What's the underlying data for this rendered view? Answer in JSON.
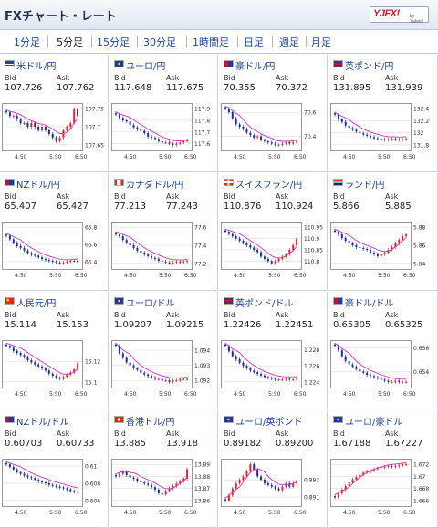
{
  "header": {
    "title": "FXチャート・レート",
    "logo_text": "YJFX!",
    "logo_sub": "by Yahoo!"
  },
  "tabs": [
    {
      "label": "1分足",
      "active": false
    },
    {
      "label": "5分足",
      "active": true
    },
    {
      "label": "15分足",
      "active": false
    },
    {
      "label": "30分足",
      "active": false
    },
    {
      "label": "1時間足",
      "active": false
    },
    {
      "label": "日足",
      "active": false
    },
    {
      "label": "週足",
      "active": false
    },
    {
      "label": "月足",
      "active": false
    }
  ],
  "labels": {
    "bid": "Bid",
    "ask": "Ask"
  },
  "colors": {
    "up": "#e0242b",
    "down": "#1c2f9c",
    "ma": "#cc33cc",
    "grid": "#dddddd"
  },
  "pairs": [
    {
      "name": "米ドル/円",
      "flag": "us-flag-icon",
      "bid": "107.726",
      "ask": "107.762",
      "chart_data": {
        "type": "candlestick",
        "x_ticks": [
          "4:50",
          "5:50",
          "6:50"
        ],
        "y_ticks": [
          "107.75",
          "107.7",
          "107.65"
        ],
        "close": [
          107.74,
          107.73,
          107.73,
          107.72,
          107.71,
          107.71,
          107.7,
          107.71,
          107.7,
          107.69,
          107.7,
          107.69,
          107.68,
          107.67,
          107.66,
          107.67,
          107.69,
          107.7,
          107.71,
          107.75,
          107.73
        ]
      }
    },
    {
      "name": "ユーロ/円",
      "flag": "eu-flag-icon",
      "bid": "117.648",
      "ask": "117.675",
      "chart_data": {
        "type": "candlestick",
        "x_ticks": [
          "4:50",
          "5:50",
          "6:50"
        ],
        "y_ticks": [
          "117.9",
          "117.8",
          "117.7",
          "117.6"
        ],
        "close": [
          117.85,
          117.82,
          117.8,
          117.79,
          117.76,
          117.74,
          117.72,
          117.71,
          117.69,
          117.66,
          117.65,
          117.64,
          117.62,
          117.61,
          117.61,
          117.6,
          117.59,
          117.6,
          117.61,
          117.62,
          117.63
        ]
      }
    },
    {
      "name": "豪ドル/円",
      "flag": "au-flag-icon",
      "bid": "70.355",
      "ask": "70.372",
      "chart_data": {
        "type": "candlestick",
        "x_ticks": [
          "4:50",
          "5:50",
          "6:50"
        ],
        "y_ticks": [
          "70.6",
          "70.4"
        ],
        "close": [
          70.63,
          70.6,
          70.55,
          70.5,
          70.48,
          70.46,
          70.43,
          70.41,
          70.39,
          70.4,
          70.37,
          70.36,
          70.35,
          70.34,
          70.33,
          70.33,
          70.34,
          70.35,
          70.34,
          70.35,
          70.36
        ]
      }
    },
    {
      "name": "英ポンド/円",
      "flag": "gb-flag-icon",
      "bid": "131.895",
      "ask": "131.939",
      "chart_data": {
        "type": "candlestick",
        "x_ticks": [
          "4:50",
          "5:50",
          "6:50"
        ],
        "y_ticks": [
          "132.4",
          "132.2",
          "132",
          "131.8"
        ],
        "close": [
          132.3,
          132.22,
          132.18,
          132.12,
          132.08,
          132.05,
          132.02,
          131.99,
          131.97,
          131.95,
          131.93,
          131.91,
          131.9,
          131.89,
          131.88,
          131.89,
          131.9,
          131.89,
          131.88,
          131.89,
          131.9
        ]
      }
    },
    {
      "name": "NZドル/円",
      "flag": "nz-flag-icon",
      "bid": "65.407",
      "ask": "65.427",
      "chart_data": {
        "type": "candlestick",
        "x_ticks": [
          "4:50",
          "5:50",
          "6:50"
        ],
        "y_ticks": [
          "65.8",
          "65.6",
          "65.4"
        ],
        "close": [
          65.7,
          65.66,
          65.62,
          65.58,
          65.56,
          65.53,
          65.5,
          65.48,
          65.47,
          65.45,
          65.43,
          65.42,
          65.41,
          65.4,
          65.39,
          65.38,
          65.39,
          65.4,
          65.41,
          65.41,
          65.4
        ]
      }
    },
    {
      "name": "カナダドル/円",
      "flag": "ca-flag-icon",
      "bid": "77.213",
      "ask": "77.243",
      "chart_data": {
        "type": "candlestick",
        "x_ticks": [
          "4:50",
          "5:50",
          "6:50"
        ],
        "y_ticks": [
          "77.6",
          "77.4",
          "77.2"
        ],
        "close": [
          77.52,
          77.5,
          77.46,
          77.43,
          77.4,
          77.37,
          77.34,
          77.32,
          77.3,
          77.28,
          77.26,
          77.25,
          77.23,
          77.22,
          77.21,
          77.2,
          77.21,
          77.22,
          77.21,
          77.22,
          77.23
        ]
      }
    },
    {
      "name": "スイスフラン/円",
      "flag": "ch-flag-icon",
      "bid": "110.876",
      "ask": "110.924",
      "chart_data": {
        "type": "candlestick",
        "x_ticks": [
          "4:50",
          "5:50",
          "6:50"
        ],
        "y_ticks": [
          "110.95",
          "110.9",
          "110.85",
          "110.8"
        ],
        "close": [
          110.93,
          110.92,
          110.91,
          110.9,
          110.89,
          110.88,
          110.87,
          110.86,
          110.85,
          110.84,
          110.82,
          110.81,
          110.8,
          110.79,
          110.8,
          110.81,
          110.82,
          110.83,
          110.85,
          110.87,
          110.9
        ]
      }
    },
    {
      "name": "ランド/円",
      "flag": "za-flag-icon",
      "bid": "5.866",
      "ask": "5.885",
      "chart_data": {
        "type": "candlestick",
        "x_ticks": [
          "4:50",
          "5:50",
          "6:50"
        ],
        "y_ticks": [
          "5.88",
          "5.86",
          "5.84"
        ],
        "close": [
          5.875,
          5.872,
          5.868,
          5.865,
          5.862,
          5.86,
          5.858,
          5.857,
          5.856,
          5.855,
          5.852,
          5.85,
          5.848,
          5.85,
          5.852,
          5.855,
          5.858,
          5.862,
          5.866,
          5.87,
          5.872
        ]
      }
    },
    {
      "name": "人民元/円",
      "flag": "cn-flag-icon",
      "bid": "15.114",
      "ask": "15.153",
      "chart_data": {
        "type": "candlestick",
        "x_ticks": [
          "4:50",
          "5:50",
          "6:50"
        ],
        "y_ticks": [
          "15.12",
          "15.1"
        ],
        "close": [
          15.135,
          15.133,
          15.13,
          15.128,
          15.126,
          15.124,
          15.121,
          15.119,
          15.117,
          15.115,
          15.113,
          15.111,
          15.108,
          15.106,
          15.104,
          15.103,
          15.105,
          15.107,
          15.109,
          15.112,
          15.118
        ]
      }
    },
    {
      "name": "ユーロ/ドル",
      "flag": "eu-flag-icon",
      "bid": "1.09207",
      "ask": "1.09215",
      "chart_data": {
        "type": "candlestick",
        "x_ticks": [
          "4:50",
          "5:50",
          "6:50"
        ],
        "y_ticks": [
          "1.094",
          "1.093",
          "1.092"
        ],
        "close": [
          1.0943,
          1.0938,
          1.0935,
          1.0932,
          1.093,
          1.0928,
          1.0927,
          1.0925,
          1.0924,
          1.0923,
          1.0922,
          1.0921,
          1.0921,
          1.092,
          1.092,
          1.0919,
          1.092,
          1.092,
          1.0921,
          1.0921,
          1.0921
        ]
      }
    },
    {
      "name": "英ポンド/ドル",
      "flag": "gb-flag-icon",
      "bid": "1.22426",
      "ask": "1.22451",
      "chart_data": {
        "type": "candlestick",
        "x_ticks": [
          "4:50",
          "5:50",
          "6:50"
        ],
        "y_ticks": [
          "1.228",
          "1.226",
          "1.224"
        ],
        "close": [
          1.2285,
          1.2278,
          1.2272,
          1.2268,
          1.2264,
          1.226,
          1.2257,
          1.2254,
          1.2252,
          1.225,
          1.2248,
          1.2246,
          1.2245,
          1.2244,
          1.2243,
          1.2243,
          1.2243,
          1.2244,
          1.2243,
          1.2243,
          1.2244
        ]
      }
    },
    {
      "name": "豪ドル/ドル",
      "flag": "au-flag-icon",
      "bid": "0.65305",
      "ask": "0.65325",
      "chart_data": {
        "type": "candlestick",
        "x_ticks": [
          "4:50",
          "5:50",
          "6:50"
        ],
        "y_ticks": [
          "0.656",
          "0.654"
        ],
        "close": [
          0.6562,
          0.6558,
          0.6553,
          0.6549,
          0.6546,
          0.6544,
          0.6542,
          0.654,
          0.6539,
          0.6537,
          0.6536,
          0.6535,
          0.6534,
          0.6533,
          0.6532,
          0.6531,
          0.6531,
          0.6532,
          0.6531,
          0.6531,
          0.6531
        ]
      }
    },
    {
      "name": "NZドル/ドル",
      "flag": "nz-flag-icon",
      "bid": "0.60703",
      "ask": "0.60733",
      "chart_data": {
        "type": "candlestick",
        "x_ticks": [
          "4:50",
          "5:50",
          "6:50"
        ],
        "y_ticks": [
          "0.61",
          "0.608",
          "0.606"
        ],
        "close": [
          0.6102,
          0.6099,
          0.6096,
          0.6093,
          0.6091,
          0.6089,
          0.6087,
          0.6086,
          0.6084,
          0.6082,
          0.6081,
          0.608,
          0.6078,
          0.6077,
          0.6076,
          0.6075,
          0.6074,
          0.6073,
          0.6071,
          0.607,
          0.607
        ]
      }
    },
    {
      "name": "香港ドル/円",
      "flag": "hk-flag-icon",
      "bid": "13.885",
      "ask": "13.918",
      "chart_data": {
        "type": "candlestick",
        "x_ticks": [
          "4:50",
          "5:50",
          "6:50"
        ],
        "y_ticks": [
          "13.89",
          "13.88",
          "13.87",
          "13.86"
        ],
        "close": [
          13.88,
          13.882,
          13.884,
          13.881,
          13.879,
          13.878,
          13.876,
          13.875,
          13.874,
          13.873,
          13.871,
          13.869,
          13.866,
          13.865,
          13.868,
          13.87,
          13.872,
          13.874,
          13.876,
          13.878,
          13.886
        ]
      }
    },
    {
      "name": "ユーロ/英ポンド",
      "flag": "eu-flag-icon",
      "bid": "0.89182",
      "ask": "0.89200",
      "chart_data": {
        "type": "candlestick",
        "x_ticks": [
          "4:50",
          "5:50",
          "6:50"
        ],
        "y_ticks": [
          "0.892",
          "0.891"
        ],
        "close": [
          0.8908,
          0.8911,
          0.8915,
          0.8918,
          0.892,
          0.8922,
          0.8925,
          0.8929,
          0.8926,
          0.8922,
          0.892,
          0.8918,
          0.8917,
          0.8916,
          0.8915,
          0.8914,
          0.8916,
          0.8918,
          0.8916,
          0.8918,
          0.8919
        ]
      }
    },
    {
      "name": "ユーロ/豪ドル",
      "flag": "eu-flag-icon",
      "bid": "1.67188",
      "ask": "1.67227",
      "chart_data": {
        "type": "candlestick",
        "x_ticks": [
          "4:50",
          "5:50",
          "6:50"
        ],
        "y_ticks": [
          "1.672",
          "1.67",
          "1.668",
          "1.666"
        ],
        "close": [
          1.6665,
          1.6672,
          1.6678,
          1.6684,
          1.669,
          1.6695,
          1.6699,
          1.6703,
          1.6706,
          1.6708,
          1.671,
          1.6712,
          1.6714,
          1.6715,
          1.6716,
          1.6717,
          1.6716,
          1.6717,
          1.6718,
          1.672,
          1.672
        ]
      }
    }
  ]
}
